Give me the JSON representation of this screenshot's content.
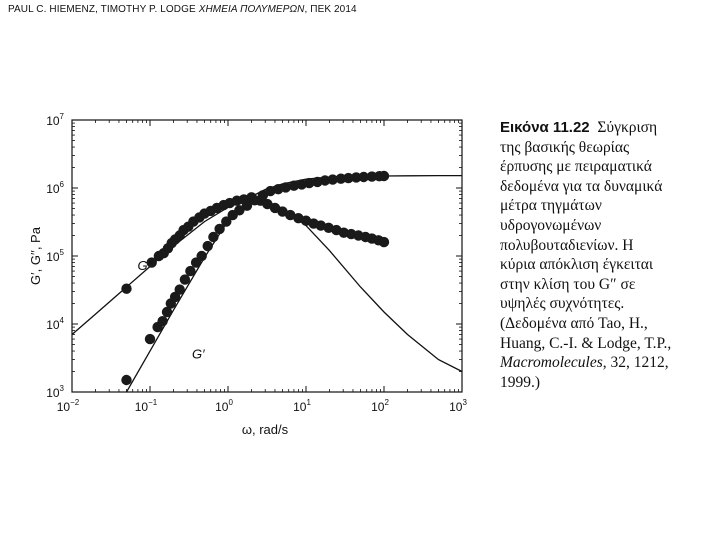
{
  "header": {
    "authors": "PAUL C. HIEMENZ, TIMOTHY P. LODGE",
    "book_title": "ΧΗΜΕΙΑ ΠΟΛΥΜΕΡΩΝ",
    "publisher_year": ", ΠΕΚ 2014"
  },
  "caption": {
    "figure_label": "Εικόνα 11.22",
    "line1": "Σύγκριση",
    "line2": "της βασικής θεωρίας",
    "line3": "έρπυσης με πειραματικά",
    "line4": "δεδομένα για τα δυναμικά",
    "line5": "μέτρα τηγμάτων",
    "line6": "υδρογονωμένων",
    "line7": "πολυβουταδιενίων. Η",
    "line8": "κύρια απόκλιση έγκειται",
    "line9": "στην κλίση του G″ σε",
    "line10": "υψηλές συχνότητες.",
    "line11": "(Δεδομένα από Tao, H.,",
    "line12": "Huang, C.-I. & Lodge, T.P.,",
    "line13_journal": "Macromolecules",
    "line13_rest": ", 32, 1212,",
    "line14": "1999.)"
  },
  "chart_data": {
    "type": "scatter",
    "xlabel": "ω, rad/s",
    "ylabel": "G′, G′′, Pa",
    "x_scale": "log",
    "y_scale": "log",
    "xlim": [
      0.01,
      1000
    ],
    "ylim": [
      1000,
      10000000
    ],
    "x_ticks": [
      {
        "value": 0.01,
        "base": "10",
        "exp": "−2"
      },
      {
        "value": 0.1,
        "base": "10",
        "exp": "−1"
      },
      {
        "value": 1,
        "base": "10",
        "exp": "0"
      },
      {
        "value": 10,
        "base": "10",
        "exp": "1"
      },
      {
        "value": 100,
        "base": "10",
        "exp": "2"
      },
      {
        "value": 1000,
        "base": "10",
        "exp": "3"
      }
    ],
    "y_ticks": [
      {
        "value": 1000,
        "base": "10",
        "exp": "3"
      },
      {
        "value": 10000,
        "base": "10",
        "exp": "4"
      },
      {
        "value": 100000,
        "base": "10",
        "exp": "5"
      },
      {
        "value": 1000000,
        "base": "10",
        "exp": "6"
      },
      {
        "value": 10000000,
        "base": "10",
        "exp": "7"
      }
    ],
    "grid": false,
    "series": [
      {
        "name": "G′′",
        "kind": "data",
        "x": [
          0.05,
          0.105,
          0.13,
          0.15,
          0.17,
          0.19,
          0.21,
          0.24,
          0.27,
          0.31,
          0.36,
          0.43,
          0.5,
          0.6,
          0.72,
          0.88,
          1.05,
          1.3,
          1.6,
          2.0,
          2.6,
          3.2,
          4.0,
          5.0,
          6.3,
          8.0,
          10.0,
          12.5,
          15.5,
          19.5,
          24.5,
          30.5,
          38.0,
          47.0,
          58.0,
          70.0,
          85.0,
          100.0
        ],
        "y": [
          33000,
          80000,
          100000,
          110000,
          130000,
          155000,
          175000,
          200000,
          240000,
          270000,
          320000,
          370000,
          420000,
          460000,
          510000,
          560000,
          600000,
          650000,
          680000,
          730000,
          650000,
          580000,
          510000,
          450000,
          400000,
          360000,
          330000,
          300000,
          280000,
          260000,
          240000,
          220000,
          210000,
          200000,
          190000,
          180000,
          170000,
          160000
        ]
      },
      {
        "name": "G′",
        "kind": "data",
        "x": [
          0.05,
          0.1,
          0.125,
          0.145,
          0.165,
          0.185,
          0.21,
          0.24,
          0.28,
          0.33,
          0.39,
          0.46,
          0.55,
          0.65,
          0.78,
          0.95,
          1.15,
          1.4,
          1.75,
          2.2,
          2.8,
          3.5,
          4.4,
          5.5,
          7.0,
          8.8,
          11.0,
          14.0,
          17.5,
          22.0,
          28.0,
          35.0,
          44.0,
          55.0,
          70.0,
          87.0,
          100.0
        ],
        "y": [
          1500,
          6000,
          9000,
          11000,
          15000,
          20000,
          25000,
          32000,
          45000,
          60000,
          80000,
          100000,
          140000,
          190000,
          250000,
          320000,
          400000,
          470000,
          550000,
          660000,
          780000,
          900000,
          960000,
          1020000,
          1080000,
          1130000,
          1180000,
          1230000,
          1290000,
          1330000,
          1370000,
          1400000,
          1430000,
          1450000,
          1470000,
          1490000,
          1500000
        ]
      },
      {
        "name": "",
        "kind": "theory",
        "x": [
          0.01,
          0.02,
          0.05,
          0.1,
          0.2,
          0.5,
          1.0,
          2.0,
          3.0,
          5.0,
          10.0,
          20.0,
          50.0,
          100.0,
          200.0,
          500.0,
          1000.0
        ],
        "y": [
          7000,
          14000,
          35000,
          70000,
          140000,
          320000,
          520000,
          700000,
          650000,
          500000,
          280000,
          120000,
          35000,
          15000,
          7000,
          3000,
          2000
        ]
      },
      {
        "name": "",
        "kind": "theory",
        "x": [
          0.05,
          0.1,
          0.2,
          0.5,
          1.0,
          2.0,
          3.0,
          5.0,
          10.0,
          20.0,
          50.0,
          100.0,
          200.0,
          500.0,
          1000.0
        ],
        "y": [
          1000,
          4000,
          16000,
          95000,
          330000,
          750000,
          950000,
          1150000,
          1350000,
          1450000,
          1500000,
          1500000,
          1510000,
          1520000,
          1520000
        ]
      }
    ],
    "annotations": [
      {
        "text": "G′′",
        "x": 0.02,
        "y": 100000
      },
      {
        "text": "G′",
        "x": 0.1,
        "y": 5000
      }
    ]
  }
}
